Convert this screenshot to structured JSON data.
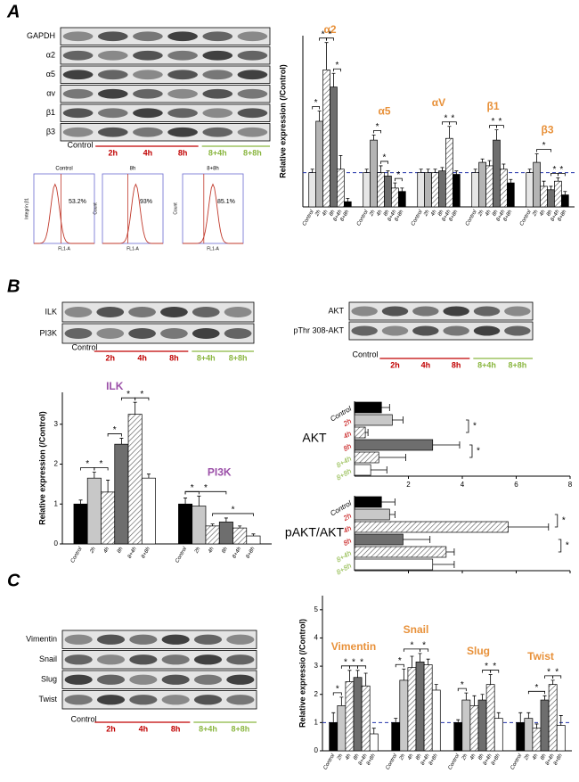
{
  "panels": [
    "A",
    "B",
    "C"
  ],
  "lanes": [
    "Control",
    "2h",
    "4h",
    "8h",
    "8+4h",
    "8+8h"
  ],
  "lane_colors": [
    "#000000",
    "#c00000",
    "#c00000",
    "#c00000",
    "#8ab640",
    "#8ab640"
  ],
  "blot_a": {
    "rows": [
      "GAPDH",
      "α2",
      "α5",
      "αv",
      "β1",
      "β3"
    ]
  },
  "blot_b1": {
    "rows": [
      "ILK",
      "PI3K"
    ]
  },
  "blot_b2": {
    "rows": [
      "AKT",
      "pThr 308-AKT"
    ]
  },
  "blot_c": {
    "rows": [
      "Vimentin",
      "Snail",
      "Slug",
      "Twist"
    ]
  },
  "flow": [
    {
      "title": "Control",
      "percent": "53.2%",
      "ylabel": "Integrin β1",
      "xlabel": "FL1-A"
    },
    {
      "title": "8h",
      "percent": "93%",
      "ylabel": "Count",
      "xlabel": "FL1-A"
    },
    {
      "title": "8+8h",
      "percent": "85.1%",
      "ylabel": "Count",
      "xlabel": "FL1-A"
    }
  ],
  "chart_data": [
    {
      "type": "bar",
      "ylabel": "Relative expression (/Control)",
      "categories": [
        "Control",
        "2h",
        "4h",
        "8h",
        "8+4h",
        "8+8h"
      ],
      "ylim": [
        0,
        5
      ],
      "reference_line": 1,
      "title_color": "#e8913a",
      "fills": [
        "#e6e6e6",
        "#b4b4b4",
        "hatch",
        "#6e6e6e",
        "hatch",
        "#000000"
      ],
      "series": [
        {
          "name": "α2",
          "values": [
            1,
            2.5,
            4.0,
            3.5,
            1.1,
            0.15
          ],
          "errors": [
            0.1,
            0.3,
            0.8,
            0.4,
            0.4,
            0.1
          ]
        },
        {
          "name": "α5",
          "values": [
            1,
            1.95,
            1.0,
            0.9,
            0.55,
            0.45
          ],
          "errors": [
            0.1,
            0.15,
            0.2,
            0.15,
            0.15,
            0.1
          ]
        },
        {
          "name": "αV",
          "values": [
            1,
            1,
            1,
            1.05,
            2.0,
            0.95
          ],
          "errors": [
            0.1,
            0.1,
            0.1,
            0.1,
            0.35,
            0.1
          ]
        },
        {
          "name": "β1",
          "values": [
            1,
            1.3,
            1.2,
            1.95,
            1.1,
            0.7
          ],
          "errors": [
            0.1,
            0.1,
            0.15,
            0.3,
            0.15,
            0.1
          ]
        },
        {
          "name": "β3",
          "values": [
            1,
            1.3,
            0.6,
            0.5,
            0.75,
            0.35
          ],
          "errors": [
            0.1,
            0.25,
            0.15,
            0.1,
            0.1,
            0.1
          ]
        }
      ],
      "significance": {
        "label": "*",
        "pairs": [
          [
            0,
            0,
            1
          ],
          [
            0,
            1,
            2
          ],
          [
            0,
            2,
            3
          ],
          [
            0,
            3,
            4
          ],
          [
            1,
            1,
            2
          ],
          [
            1,
            2,
            3
          ],
          [
            1,
            4,
            5
          ],
          [
            2,
            3,
            4
          ],
          [
            2,
            4,
            5
          ],
          [
            3,
            2,
            3
          ],
          [
            3,
            3,
            4
          ],
          [
            4,
            1,
            3
          ],
          [
            4,
            3,
            4
          ],
          [
            4,
            4,
            5
          ]
        ]
      }
    },
    {
      "type": "bar",
      "ylabel": "Relative expression (/Control)",
      "categories": [
        "Control",
        "2h",
        "4h",
        "8h",
        "8+4h",
        "8+8h"
      ],
      "ylim": [
        0,
        3.8
      ],
      "yticks": [
        0,
        1,
        2,
        3
      ],
      "title_color": "#9b4fa8",
      "fills": [
        "#000000",
        "#c8c8c8",
        "hatch",
        "#6e6e6e",
        "hatch",
        "#ffffff"
      ],
      "series": [
        {
          "name": "ILK",
          "values": [
            1,
            1.65,
            1.3,
            2.5,
            3.25,
            1.65
          ],
          "errors": [
            0.1,
            0.15,
            0.3,
            0.15,
            0.3,
            0.1
          ]
        },
        {
          "name": "PI3K",
          "values": [
            1,
            0.95,
            0.45,
            0.55,
            0.4,
            0.2
          ],
          "errors": [
            0.15,
            0.25,
            0.05,
            0.1,
            0.05,
            0.05
          ]
        }
      ],
      "significance": {
        "label": "*",
        "pairs": [
          [
            0,
            0,
            1
          ],
          [
            0,
            1,
            2
          ],
          [
            0,
            2,
            3
          ],
          [
            0,
            3,
            4
          ],
          [
            0,
            4,
            5
          ],
          [
            1,
            0,
            1
          ],
          [
            1,
            0,
            3
          ],
          [
            1,
            2,
            5
          ]
        ]
      }
    },
    {
      "type": "hbar",
      "categories": [
        "Control",
        "2h",
        "4h",
        "8h",
        "8+4h",
        "8+8h"
      ],
      "category_colors": [
        "#000000",
        "#c00000",
        "#c00000",
        "#c00000",
        "#8ab640",
        "#8ab640"
      ],
      "xlim": [
        0,
        8
      ],
      "xticks": [
        2,
        4,
        6,
        8
      ],
      "fills": [
        "#000000",
        "#c8c8c8",
        "hatch",
        "#6e6e6e",
        "hatch",
        "#ffffff"
      ],
      "series": [
        {
          "name": "AKT",
          "values": [
            1,
            1.4,
            0.4,
            2.9,
            0.9,
            0.6
          ],
          "errors": [
            0.3,
            0.4,
            0.1,
            1.0,
            1.0,
            0.6
          ]
        },
        {
          "name": "pAKT/AKT",
          "values": [
            1,
            1.3,
            5.7,
            1.8,
            3.4,
            2.9
          ],
          "errors": [
            0.5,
            0.2,
            1.5,
            1.0,
            0.3,
            0.8
          ]
        }
      ],
      "significance": {
        "label": "*"
      }
    },
    {
      "type": "bar",
      "ylabel": "Relative expressio (/Control)",
      "categories": [
        "Control",
        "2h",
        "4h",
        "8h",
        "8+4h",
        "8+8h"
      ],
      "ylim": [
        0,
        5.5
      ],
      "yticks": [
        0,
        1,
        2,
        3,
        4,
        5
      ],
      "reference_line": 1,
      "title_color": "#e8913a",
      "fills": [
        "#000000",
        "#c8c8c8",
        "hatch",
        "#6e6e6e",
        "hatch",
        "#ffffff"
      ],
      "series": [
        {
          "name": "Vimentin",
          "values": [
            1,
            1.6,
            2.45,
            2.6,
            2.3,
            0.6
          ],
          "errors": [
            0.35,
            0.3,
            0.4,
            0.25,
            0.45,
            0.2
          ]
        },
        {
          "name": "Snail",
          "values": [
            1,
            2.5,
            2.95,
            3.15,
            3.05,
            2.15
          ],
          "errors": [
            0.15,
            0.4,
            0.4,
            0.3,
            0.2,
            0.2
          ]
        },
        {
          "name": "Slug",
          "values": [
            1,
            1.8,
            1.6,
            1.8,
            2.35,
            1.15
          ],
          "errors": [
            0.1,
            0.25,
            0.35,
            0.2,
            0.35,
            0.2
          ]
        },
        {
          "name": "Twist",
          "values": [
            1,
            1.15,
            0.8,
            1.8,
            2.35,
            0.9
          ],
          "errors": [
            0.35,
            0.2,
            0.15,
            0.15,
            0.15,
            0.35
          ]
        }
      ],
      "significance": {
        "label": "*",
        "pairs": [
          [
            0,
            0,
            1
          ],
          [
            0,
            1,
            2
          ],
          [
            0,
            2,
            3
          ],
          [
            0,
            3,
            4
          ],
          [
            1,
            0,
            1
          ],
          [
            1,
            1,
            3
          ],
          [
            1,
            3,
            4
          ],
          [
            2,
            0,
            1
          ],
          [
            2,
            3,
            4
          ],
          [
            2,
            4,
            5
          ],
          [
            3,
            1,
            3
          ],
          [
            3,
            3,
            4
          ],
          [
            3,
            4,
            5
          ]
        ]
      }
    }
  ]
}
